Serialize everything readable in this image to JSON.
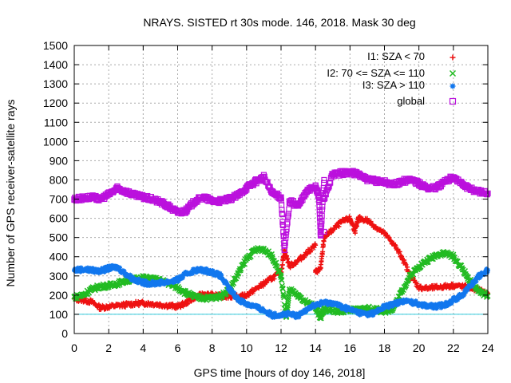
{
  "chart_data": {
    "type": "scatter",
    "title": "NRAYS. SISTED rt 30s mode. 146, 2018. Mask 30 deg",
    "xlabel": "GPS time [hours of doy 146, 2018]",
    "ylabel": "Number of GPS receiver-satellite rays",
    "xlim": [
      0,
      24
    ],
    "ylim": [
      0,
      1500
    ],
    "xticks": [
      0,
      2,
      4,
      6,
      8,
      10,
      12,
      14,
      16,
      18,
      20,
      22,
      24
    ],
    "yticks": [
      0,
      100,
      200,
      300,
      400,
      500,
      600,
      700,
      800,
      900,
      1000,
      1100,
      1200,
      1300,
      1400,
      1500
    ],
    "grid": true,
    "legend_position": "top-right",
    "reference_line": {
      "y": 100,
      "color": "#33ccdd"
    },
    "series": [
      {
        "name": "I1: SZA < 70",
        "color": "#ee1111",
        "marker": "plus",
        "points": [
          [
            0,
            180
          ],
          [
            0.5,
            175
          ],
          [
            1,
            165
          ],
          [
            1.5,
            135
          ],
          [
            2,
            140
          ],
          [
            2.5,
            145
          ],
          [
            3,
            150
          ],
          [
            3.5,
            155
          ],
          [
            4,
            158
          ],
          [
            4.5,
            155
          ],
          [
            5,
            150
          ],
          [
            5.5,
            145
          ],
          [
            6,
            140
          ],
          [
            6.5,
            160
          ],
          [
            7,
            190
          ],
          [
            7.5,
            205
          ],
          [
            8,
            200
          ],
          [
            8.5,
            195
          ],
          [
            9,
            195
          ],
          [
            9.5,
            190
          ],
          [
            10,
            200
          ],
          [
            10.5,
            230
          ],
          [
            11,
            260
          ],
          [
            11.5,
            290
          ],
          [
            12,
            320
          ],
          [
            12.5,
            350
          ],
          [
            13,
            380
          ],
          [
            13.5,
            420
          ],
          [
            14,
            460
          ],
          [
            14.5,
            500
          ],
          [
            15,
            540
          ],
          [
            15.5,
            580
          ],
          [
            16,
            600
          ],
          [
            16.5,
            600
          ],
          [
            17,
            590
          ],
          [
            17.5,
            555
          ],
          [
            18,
            520
          ],
          [
            18.5,
            470
          ],
          [
            19,
            400
          ],
          [
            19.5,
            300
          ],
          [
            20,
            240
          ],
          [
            20.5,
            235
          ],
          [
            21,
            240
          ],
          [
            21.5,
            245
          ],
          [
            22,
            250
          ],
          [
            22.5,
            245
          ],
          [
            23,
            240
          ],
          [
            23.5,
            225
          ],
          [
            24,
            210
          ],
          [
            12.2,
            430
          ],
          [
            14,
            320
          ],
          [
            14.3,
            340
          ],
          [
            16.3,
            535
          ]
        ]
      },
      {
        "name": "I2: 70 <= SZA <= 110",
        "color": "#22bb22",
        "marker": "cross",
        "points": [
          [
            0,
            190
          ],
          [
            0.5,
            200
          ],
          [
            1,
            230
          ],
          [
            1.5,
            245
          ],
          [
            2,
            250
          ],
          [
            2.5,
            260
          ],
          [
            3,
            275
          ],
          [
            3.5,
            285
          ],
          [
            4,
            290
          ],
          [
            4.5,
            285
          ],
          [
            5,
            275
          ],
          [
            5.5,
            260
          ],
          [
            6,
            240
          ],
          [
            6.5,
            210
          ],
          [
            7,
            190
          ],
          [
            7.5,
            185
          ],
          [
            8,
            185
          ],
          [
            8.5,
            195
          ],
          [
            9,
            230
          ],
          [
            9.5,
            310
          ],
          [
            10,
            390
          ],
          [
            10.5,
            435
          ],
          [
            11,
            440
          ],
          [
            11.5,
            400
          ],
          [
            12,
            300
          ],
          [
            12.5,
            230
          ],
          [
            13,
            190
          ],
          [
            13.5,
            160
          ],
          [
            14,
            140
          ],
          [
            14.5,
            130
          ],
          [
            15,
            120
          ],
          [
            15.5,
            115
          ],
          [
            16,
            120
          ],
          [
            16.5,
            125
          ],
          [
            17,
            130
          ],
          [
            17.5,
            125
          ],
          [
            18,
            115
          ],
          [
            18.5,
            130
          ],
          [
            19,
            220
          ],
          [
            19.5,
            300
          ],
          [
            20,
            350
          ],
          [
            20.5,
            380
          ],
          [
            21,
            410
          ],
          [
            21.5,
            420
          ],
          [
            22,
            400
          ],
          [
            22.5,
            340
          ],
          [
            23,
            270
          ],
          [
            23.5,
            220
          ],
          [
            24,
            195
          ],
          [
            12.3,
            85
          ],
          [
            14.3,
            80
          ]
        ]
      },
      {
        "name": "I3: SZA > 110",
        "color": "#1177ee",
        "marker": "star",
        "points": [
          [
            0,
            330
          ],
          [
            0.5,
            335
          ],
          [
            1,
            330
          ],
          [
            1.5,
            325
          ],
          [
            2,
            340
          ],
          [
            2.5,
            345
          ],
          [
            3,
            310
          ],
          [
            3.5,
            280
          ],
          [
            4,
            265
          ],
          [
            4.5,
            260
          ],
          [
            5,
            265
          ],
          [
            5.5,
            270
          ],
          [
            6,
            280
          ],
          [
            6.5,
            310
          ],
          [
            7,
            330
          ],
          [
            7.5,
            330
          ],
          [
            8,
            320
          ],
          [
            8.5,
            300
          ],
          [
            9,
            230
          ],
          [
            9.5,
            180
          ],
          [
            10,
            155
          ],
          [
            10.5,
            140
          ],
          [
            11,
            120
          ],
          [
            11.5,
            95
          ],
          [
            12,
            100
          ],
          [
            12.5,
            100
          ],
          [
            13,
            90
          ],
          [
            13.5,
            130
          ],
          [
            14,
            150
          ],
          [
            14.5,
            160
          ],
          [
            15,
            160
          ],
          [
            15.5,
            140
          ],
          [
            16,
            125
          ],
          [
            16.5,
            110
          ],
          [
            17,
            100
          ],
          [
            17.5,
            110
          ],
          [
            18,
            140
          ],
          [
            18.5,
            150
          ],
          [
            19,
            170
          ],
          [
            19.5,
            165
          ],
          [
            20,
            155
          ],
          [
            20.5,
            145
          ],
          [
            21,
            140
          ],
          [
            21.5,
            150
          ],
          [
            22,
            175
          ],
          [
            22.5,
            200
          ],
          [
            23,
            250
          ],
          [
            23.5,
            300
          ],
          [
            24,
            330
          ]
        ]
      },
      {
        "name": "global",
        "color": "#bb11dd",
        "marker": "square",
        "points": [
          [
            0,
            700
          ],
          [
            0.5,
            705
          ],
          [
            1,
            710
          ],
          [
            1.5,
            700
          ],
          [
            2,
            725
          ],
          [
            2.5,
            755
          ],
          [
            3,
            740
          ],
          [
            3.5,
            720
          ],
          [
            4,
            710
          ],
          [
            4.5,
            700
          ],
          [
            5,
            685
          ],
          [
            5.5,
            660
          ],
          [
            6,
            630
          ],
          [
            6.5,
            640
          ],
          [
            7,
            690
          ],
          [
            7.5,
            710
          ],
          [
            8,
            690
          ],
          [
            8.5,
            690
          ],
          [
            9,
            700
          ],
          [
            9.5,
            720
          ],
          [
            10,
            760
          ],
          [
            10.5,
            790
          ],
          [
            11,
            815
          ],
          [
            11.5,
            730
          ],
          [
            12,
            710
          ],
          [
            12.5,
            690
          ],
          [
            13,
            665
          ],
          [
            13.5,
            740
          ],
          [
            14,
            770
          ],
          [
            14.5,
            800
          ],
          [
            15,
            830
          ],
          [
            15.5,
            835
          ],
          [
            16,
            840
          ],
          [
            16.5,
            830
          ],
          [
            17,
            800
          ],
          [
            17.5,
            795
          ],
          [
            18,
            790
          ],
          [
            18.5,
            775
          ],
          [
            19,
            790
          ],
          [
            19.5,
            805
          ],
          [
            20,
            780
          ],
          [
            20.5,
            760
          ],
          [
            21,
            760
          ],
          [
            21.5,
            790
          ],
          [
            22,
            815
          ],
          [
            22.5,
            780
          ],
          [
            23,
            750
          ],
          [
            23.5,
            740
          ],
          [
            24,
            730
          ],
          [
            12.2,
            435
          ],
          [
            14.3,
            510
          ],
          [
            14.5,
            530
          ],
          [
            14.2,
            710
          ],
          [
            14.5,
            700
          ]
        ]
      }
    ]
  }
}
